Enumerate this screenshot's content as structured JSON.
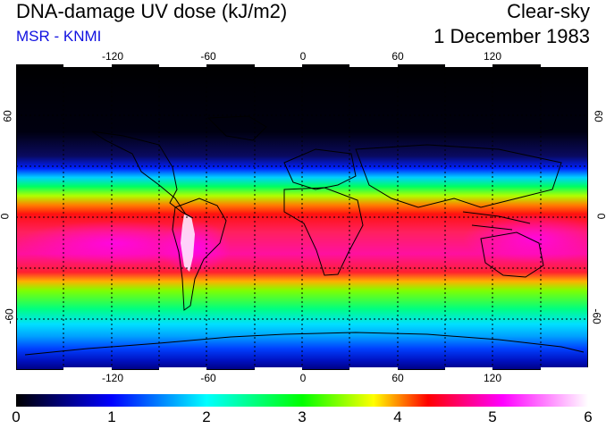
{
  "header": {
    "title": "DNA-damage UV dose (kJ/m2)",
    "subtitle": "MSR - KNMI",
    "sky_condition": "Clear-sky",
    "date": "1 December 1983"
  },
  "axes": {
    "lon_ticks": [
      "-120",
      "-60",
      "0",
      "60",
      "120"
    ],
    "lon_values": [
      -120,
      -60,
      0,
      60,
      120
    ],
    "lat_ticks": [
      "60",
      "0",
      "-60"
    ],
    "lat_values": [
      60,
      0,
      -60
    ],
    "lon_range": [
      -180,
      180
    ],
    "lat_range": [
      -90,
      90
    ]
  },
  "colorbar": {
    "labels": [
      "0",
      "1",
      "2",
      "3",
      "4",
      "5",
      "6"
    ],
    "min": 0,
    "max": 6,
    "colors": [
      "#000000",
      "#0000ff",
      "#00ffff",
      "#00ff00",
      "#ffff00",
      "#ff0000",
      "#ff00ff",
      "#ffffff"
    ]
  },
  "colors": {
    "subtitle": "#1010e0",
    "coastline": "#000000",
    "grid": "#000000"
  }
}
